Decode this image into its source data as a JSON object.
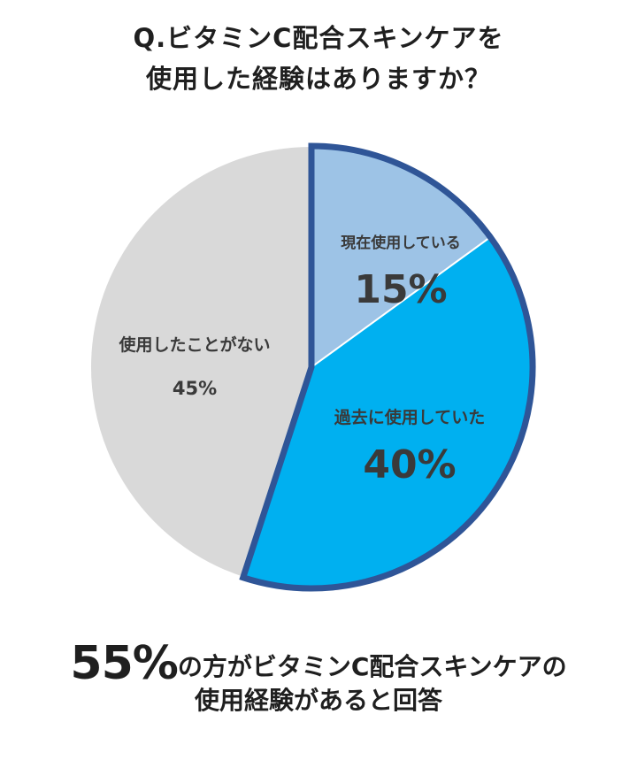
{
  "title": {
    "line1": "Q.ビタミンC配合スキンケアを",
    "line2": "使用した経験はありますか？"
  },
  "chart_data": {
    "type": "pie",
    "title": "Q.ビタミンC配合スキンケアを使用した経験はありますか？",
    "slices": [
      {
        "label": "現在使用している",
        "value": 15,
        "value_label": "15%",
        "color": "#9dc3e6",
        "highlighted": true
      },
      {
        "label": "過去に使用していた",
        "value": 40,
        "value_label": "40%",
        "color": "#00b0f0",
        "highlighted": true
      },
      {
        "label": "使用したことがない",
        "value": 45,
        "value_label": "45%",
        "color": "#d9d9d9",
        "highlighted": false
      }
    ],
    "highlight_border_color": "#2f5597"
  },
  "footer": {
    "big": "55%",
    "line1_rest": "の方がビタミンC配合スキンケアの",
    "line2": "使用経験があると回答"
  }
}
